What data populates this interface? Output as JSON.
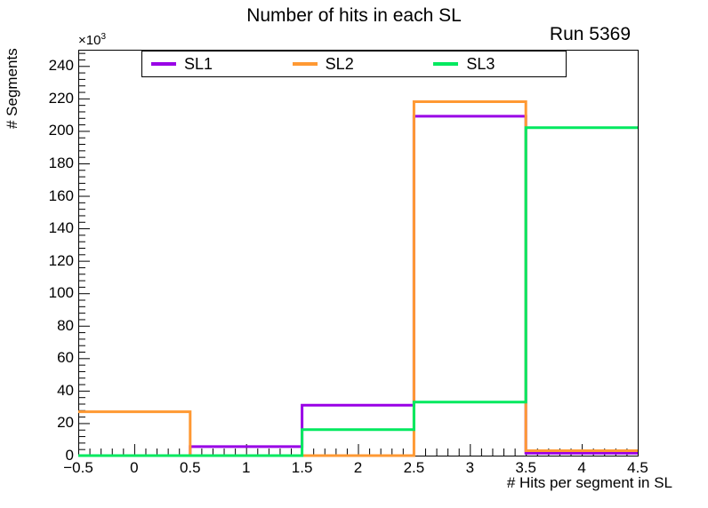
{
  "chart_data": {
    "type": "step-histogram",
    "title": "Number of hits in each SL",
    "annotation": "Run 5369",
    "xlabel": "# Hits per segment in SL",
    "ylabel": "# Segments",
    "y_multiplier_base": "×10",
    "y_multiplier_exponent": "3",
    "xlim": [
      -0.5,
      4.5
    ],
    "ylim": [
      0,
      250000
    ],
    "grid": false,
    "legend_position": "top-inside",
    "bin_edges": [
      -0.5,
      0.5,
      1.5,
      2.5,
      3.5,
      4.5
    ],
    "series": [
      {
        "name": "SL1",
        "color": "#9900e6",
        "values": [
          0,
          5500,
          31000,
          209000,
          1500
        ]
      },
      {
        "name": "SL2",
        "color": "#ff9933",
        "values": [
          27000,
          0,
          0,
          218000,
          3000
        ]
      },
      {
        "name": "SL3",
        "color": "#00e95f",
        "values": [
          0,
          0,
          16000,
          33000,
          202000
        ]
      }
    ],
    "y_ticks": {
      "values": [
        0,
        20000,
        40000,
        60000,
        80000,
        100000,
        120000,
        140000,
        160000,
        180000,
        200000,
        220000,
        240000
      ],
      "labels": [
        "0",
        "20",
        "40",
        "60",
        "80",
        "100",
        "120",
        "140",
        "160",
        "180",
        "200",
        "220",
        "240"
      ]
    },
    "x_ticks": {
      "values": [
        -0.5,
        0,
        0.5,
        1,
        1.5,
        2,
        2.5,
        3,
        3.5,
        4,
        4.5
      ],
      "labels": [
        "−0.5",
        "0",
        "0.5",
        "1",
        "1.5",
        "2",
        "2.5",
        "3",
        "3.5",
        "4",
        "4.5"
      ]
    }
  }
}
